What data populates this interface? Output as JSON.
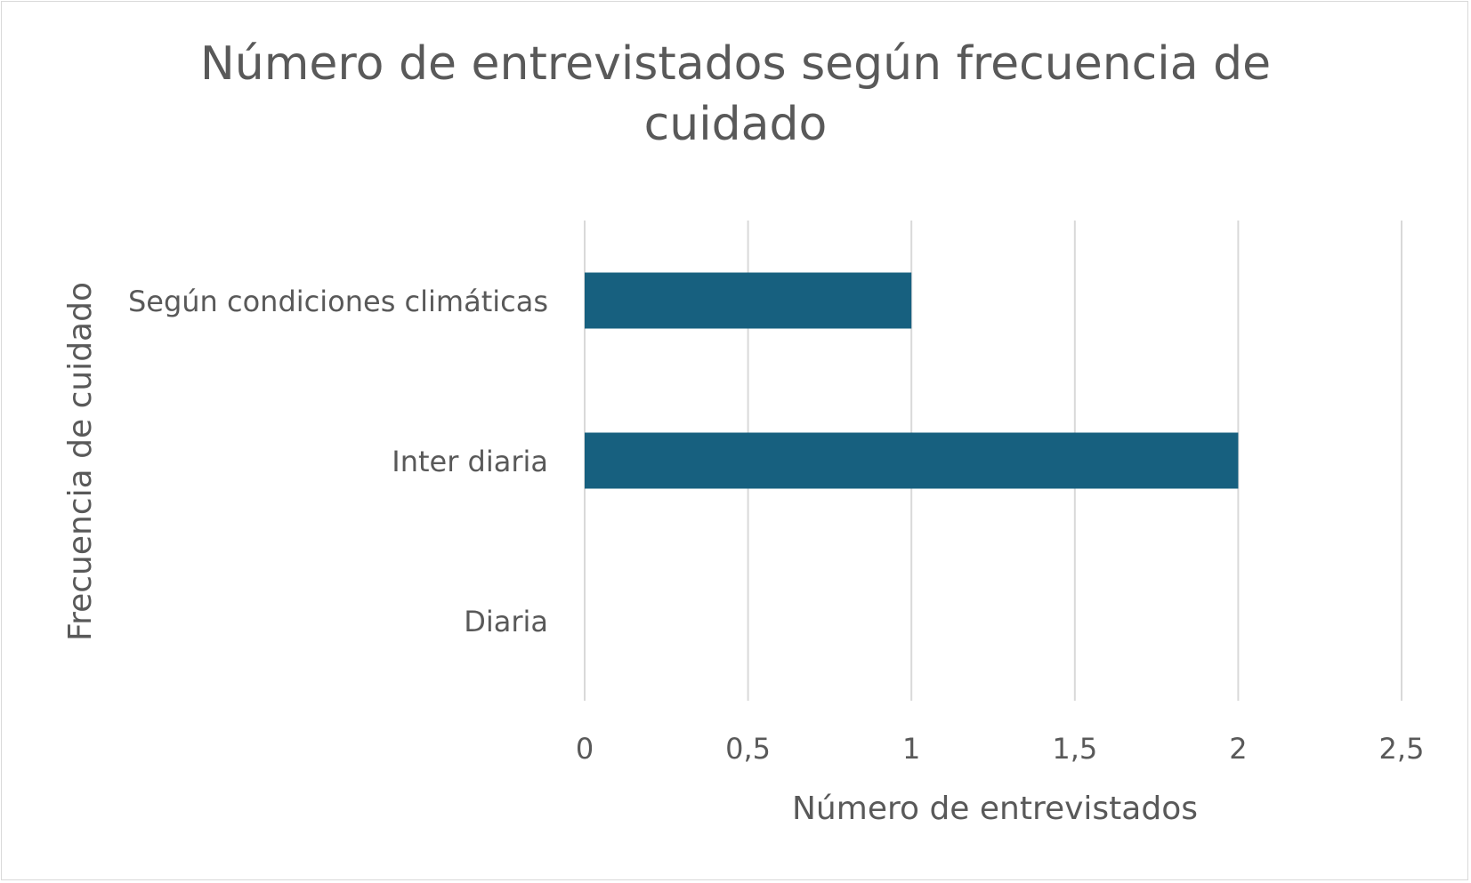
{
  "chart_data": {
    "type": "bar",
    "orientation": "horizontal",
    "title_lines": [
      "Número de entrevistados según frecuencia de",
      "cuidado"
    ],
    "xlabel": "Número de entrevistados",
    "ylabel": "Frecuencia de cuidado",
    "categories": [
      "Según condiciones climáticas",
      "Inter diaria",
      "Diaria"
    ],
    "values": [
      1,
      2,
      0
    ],
    "xlim": [
      0,
      2.5
    ],
    "xticks": [
      0,
      0.5,
      1,
      1.5,
      2,
      2.5
    ],
    "xtick_labels": [
      "0",
      "0,5",
      "1",
      "1,5",
      "2",
      "2,5"
    ],
    "grid": true,
    "legend": "none",
    "bar_color": "#17607f",
    "grid_color": "#d9d9d9",
    "text_color": "#595959"
  }
}
